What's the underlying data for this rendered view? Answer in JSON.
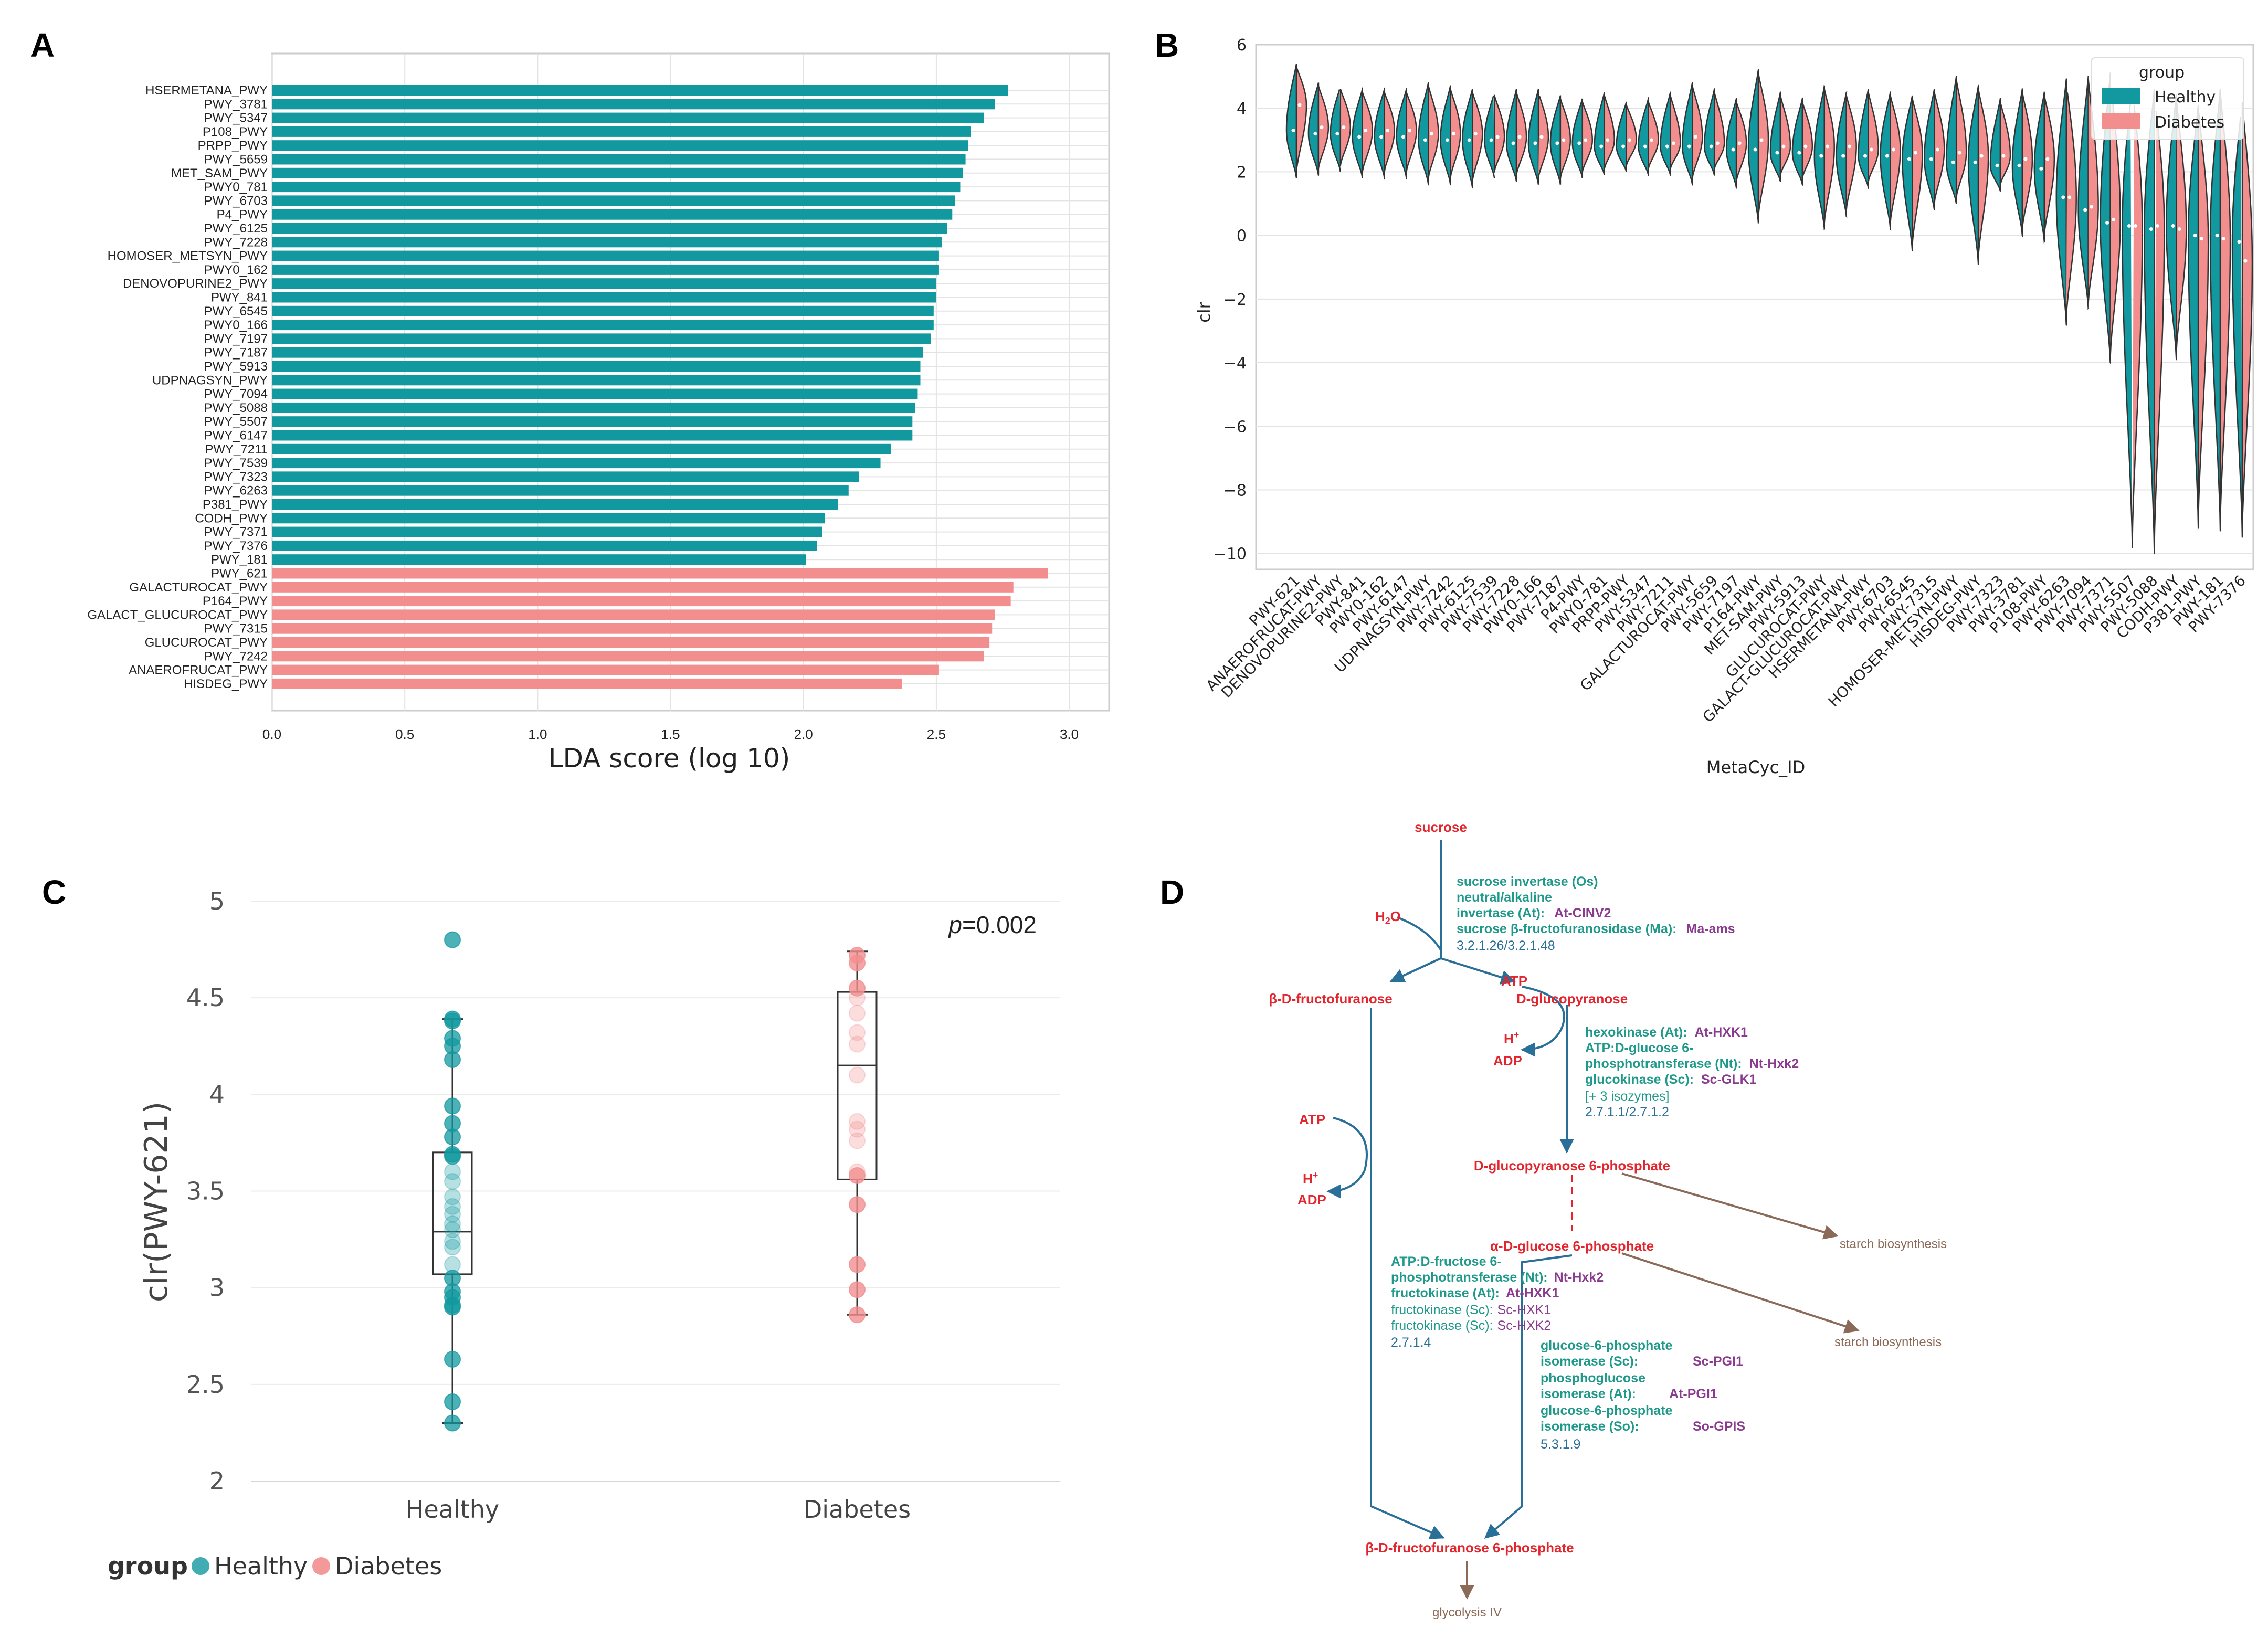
{
  "colors": {
    "healthy": "#12989f",
    "diabetes": "#f28e8e",
    "red": "#e3262d",
    "teal": "#1f9a8a",
    "purple": "#8a3b8f",
    "blue": "#2a6f97",
    "brown": "#8b6a57",
    "grid": "#e3e3e3"
  },
  "chart_data": [
    {
      "panel": "A",
      "type": "bar",
      "orientation": "horizontal",
      "xlabel": "LDA score (log 10)",
      "xlim": [
        0,
        3.15
      ],
      "xticks": [
        0.0,
        0.5,
        1.0,
        1.5,
        2.0,
        2.5,
        3.0
      ],
      "series": [
        {
          "name": "Healthy",
          "categories": [
            "HSERMETANA_PWY",
            "PWY_3781",
            "PWY_5347",
            "P108_PWY",
            "PRPP_PWY",
            "PWY_5659",
            "MET_SAM_PWY",
            "PWY0_781",
            "PWY_6703",
            "P4_PWY",
            "PWY_6125",
            "PWY_7228",
            "HOMOSER_METSYN_PWY",
            "PWY0_162",
            "DENOVOPURINE2_PWY",
            "PWY_841",
            "PWY_6545",
            "PWY0_166",
            "PWY_7197",
            "PWY_7187",
            "PWY_5913",
            "UDPNAGSYN_PWY",
            "PWY_7094",
            "PWY_5088",
            "PWY_5507",
            "PWY_6147",
            "PWY_7211",
            "PWY_7539",
            "PWY_7323",
            "PWY_6263",
            "P381_PWY",
            "CODH_PWY",
            "PWY_7371",
            "PWY_7376",
            "PWY_181"
          ],
          "values": [
            2.77,
            2.72,
            2.68,
            2.63,
            2.62,
            2.61,
            2.6,
            2.59,
            2.57,
            2.56,
            2.54,
            2.52,
            2.51,
            2.51,
            2.5,
            2.5,
            2.49,
            2.49,
            2.48,
            2.45,
            2.44,
            2.44,
            2.43,
            2.42,
            2.41,
            2.41,
            2.33,
            2.29,
            2.21,
            2.17,
            2.13,
            2.08,
            2.07,
            2.05,
            2.01
          ]
        },
        {
          "name": "Diabetes",
          "categories": [
            "PWY_621",
            "GALACTUROCAT_PWY",
            "P164_PWY",
            "GALACT_GLUCUROCAT_PWY",
            "PWY_7315",
            "GLUCUROCAT_PWY",
            "PWY_7242",
            "ANAEROFRUCAT_PWY",
            "HISDEG_PWY"
          ],
          "values": [
            2.92,
            2.79,
            2.78,
            2.72,
            2.71,
            2.7,
            2.68,
            2.51,
            2.37
          ]
        }
      ]
    },
    {
      "panel": "B",
      "type": "violin",
      "xlabel": "MetaCyc_ID",
      "ylabel": "clr",
      "ylim": [
        -10.5,
        6
      ],
      "yticks": [
        6,
        4,
        2,
        0,
        -2,
        -4,
        -6,
        -8,
        -10
      ],
      "legend": {
        "title": "group",
        "entries": [
          "Healthy",
          "Diabetes"
        ],
        "position": "top-right"
      },
      "categories": [
        "PWY-621",
        "ANAEROFRUCAT-PWY",
        "DENOVOPURINE2-PWY",
        "PWY-841",
        "PWY0-162",
        "PWY-6147",
        "UDPNAGSYN-PWY",
        "PWY-7242",
        "PWY-6125",
        "PWY-7539",
        "PWY-7228",
        "PWY0-166",
        "PWY-7187",
        "P4-PWY",
        "PWY0-781",
        "PRPP-PWY",
        "PWY-5347",
        "PWY-7211",
        "GALACTUROCAT-PWY",
        "PWY-5659",
        "PWY-7197",
        "P164-PWY",
        "MET-SAM-PWY",
        "PWY-5913",
        "GLUCUROCAT-PWY",
        "GALACT-GLUCUROCAT-PWY",
        "HSERMETANA-PWY",
        "PWY-6703",
        "PWY-6545",
        "PWY-7315",
        "HOMOSER-METSYN-PWY",
        "HISDEG-PWY",
        "PWY-7323",
        "PWY-3781",
        "P108-PWY",
        "PWY-6263",
        "PWY-7094",
        "PWY-7371",
        "PWY-5507",
        "PWY-5088",
        "CODH-PWY",
        "P381-PWY",
        "PWY-181",
        "PWY-7376"
      ],
      "healthy_median": [
        3.3,
        3.2,
        3.2,
        3.1,
        3.1,
        3.1,
        3.0,
        3.0,
        3.0,
        3.0,
        2.9,
        2.9,
        2.9,
        2.9,
        2.8,
        2.8,
        2.8,
        2.8,
        2.8,
        2.8,
        2.7,
        2.7,
        2.6,
        2.6,
        2.5,
        2.5,
        2.5,
        2.5,
        2.4,
        2.4,
        2.3,
        2.3,
        2.2,
        2.2,
        2.1,
        1.2,
        0.8,
        0.4,
        0.3,
        0.2,
        0.3,
        0.0,
        0.0,
        -0.2
      ],
      "diabetes_median": [
        4.1,
        3.4,
        3.4,
        3.3,
        3.3,
        3.3,
        3.2,
        3.2,
        3.2,
        3.1,
        3.1,
        3.1,
        3.0,
        3.0,
        3.0,
        3.0,
        3.0,
        2.9,
        3.1,
        2.9,
        2.9,
        3.0,
        2.8,
        2.8,
        2.8,
        2.8,
        2.7,
        2.7,
        2.6,
        2.7,
        2.6,
        2.5,
        2.5,
        2.4,
        2.4,
        1.2,
        0.9,
        0.5,
        0.3,
        0.3,
        0.2,
        -0.1,
        -0.1,
        -0.8
      ],
      "lower": [
        1.8,
        1.9,
        2.0,
        1.8,
        1.8,
        1.8,
        1.6,
        1.6,
        1.5,
        1.8,
        1.7,
        1.6,
        1.6,
        1.8,
        1.9,
        2.0,
        1.9,
        1.9,
        1.6,
        1.9,
        1.5,
        0.4,
        1.7,
        1.6,
        0.2,
        0.6,
        1.5,
        0.2,
        -0.5,
        0.8,
        1.0,
        -0.9,
        1.4,
        0.0,
        -0.2,
        -2.8,
        -2.3,
        -4.0,
        -9.8,
        -10.0,
        -3.9,
        -9.2,
        -9.3,
        -9.5
      ],
      "upper": [
        5.4,
        4.8,
        4.7,
        4.6,
        4.6,
        4.6,
        4.8,
        4.7,
        4.6,
        4.5,
        4.6,
        4.6,
        4.4,
        4.3,
        4.5,
        4.2,
        4.3,
        4.5,
        4.8,
        4.6,
        4.3,
        5.2,
        4.5,
        4.3,
        4.7,
        4.5,
        4.6,
        4.5,
        4.4,
        4.6,
        5.0,
        4.7,
        4.3,
        4.6,
        4.5,
        4.9,
        5.0,
        5.1,
        4.8,
        4.6,
        4.4,
        4.1,
        4.6,
        4.3
      ]
    },
    {
      "panel": "C",
      "type": "box",
      "ylabel": "clr(PWY-621)",
      "ylim": [
        2,
        5
      ],
      "yticks": [
        "5",
        "4.5",
        "4",
        "3.5",
        "3",
        "2.5",
        "2"
      ],
      "categories": [
        "Healthy",
        "Diabetes"
      ],
      "annotation": "=0.002",
      "annotation_italic": "p",
      "legend": {
        "title": "group",
        "entries": [
          "Healthy",
          "Diabetes"
        ],
        "position": "bottom-left"
      },
      "groups": [
        {
          "name": "Healthy",
          "q1": 3.07,
          "median": 3.29,
          "q3": 3.7,
          "whisker_low": 2.3,
          "whisker_high": 4.39,
          "points": [
            4.8,
            4.39,
            4.38,
            4.29,
            4.25,
            4.18,
            3.94,
            3.85,
            3.78,
            3.69,
            3.68,
            3.6,
            3.55,
            3.47,
            3.42,
            3.38,
            3.33,
            3.3,
            3.24,
            3.21,
            3.12,
            3.05,
            2.98,
            2.95,
            2.91,
            2.9,
            2.63,
            2.41,
            2.3
          ]
        },
        {
          "name": "Diabetes",
          "q1": 3.56,
          "median": 4.15,
          "q3": 4.53,
          "whisker_low": 2.86,
          "whisker_high": 4.74,
          "points": [
            4.72,
            4.68,
            4.55,
            4.5,
            4.42,
            4.32,
            4.26,
            4.1,
            3.86,
            3.82,
            3.76,
            3.6,
            3.58,
            3.43,
            3.12,
            2.99,
            2.86
          ]
        }
      ]
    }
  ],
  "panel_labels": {
    "a": "A",
    "b": "B",
    "c": "C",
    "d": "D"
  },
  "pathway": {
    "sucrose": "sucrose",
    "h2o": "H",
    "h2o_sub": "2",
    "h2o_end": "O",
    "frucfuranose": "β-D-fructofuranose",
    "glucopyranose": "D-glucopyranose",
    "atp": "ATP",
    "hplus": "H",
    "plus": "+",
    "adp": "ADP",
    "enz1_a": "sucrose invertase (Os)",
    "enz1_b": "neutral/alkaline",
    "enz1_c": "invertase (At):",
    "enz1_c_gene": "At-CINV2",
    "enz1_d": "sucrose β-fructofuranosidase (Ma):",
    "enz1_d_gene": "Ma-ams",
    "ec1": "3.2.1.26/3.2.1.48",
    "enz2_a": "hexokinase (At):",
    "enz2_a_gene": "At-HXK1",
    "enz2_b": "ATP:D-glucose 6-",
    "enz2_c": "phosphotransferase (Nt):",
    "enz2_c_gene": "Nt-Hxk2",
    "enz2_d": "glucokinase (Sc):",
    "enz2_d_gene": "Sc-GLK1",
    "enz2_e": "[+ 3 isozymes]",
    "ec2": "2.7.1.1/2.7.1.2",
    "g6p": "D-glucopyranose 6-phosphate",
    "starch1": "starch biosynthesis",
    "ag6p": "α-D-glucose 6-phosphate",
    "starch2": "starch biosynthesis",
    "enz3_a": "ATP:D-fructose 6-",
    "enz3_b": "phosphotransferase (Nt):",
    "enz3_b_gene": "Nt-Hxk2",
    "enz3_c": "fructokinase (At):",
    "enz3_c_gene": "At-HXK1",
    "enz3_d": "fructokinase (Sc):",
    "enz3_d_gene": "Sc-HXK1",
    "enz3_e": "fructokinase (Sc):",
    "enz3_e_gene": "Sc-HXK2",
    "ec3": "2.7.1.4",
    "enz4_a": "glucose-6-phosphate",
    "enz4_b": "isomerase (Sc):",
    "enz4_b_gene": "Sc-PGI1",
    "enz4_c": "phosphoglucose",
    "enz4_d": "isomerase (At):",
    "enz4_d_gene": "At-PGI1",
    "enz4_e": "glucose-6-phosphate",
    "enz4_f": "isomerase (So):",
    "enz4_f_gene": "So-GPIS",
    "ec4": "5.3.1.9",
    "f6p": "β-D-fructofuranose 6-phosphate",
    "glycolysis": "glycolysis IV"
  }
}
